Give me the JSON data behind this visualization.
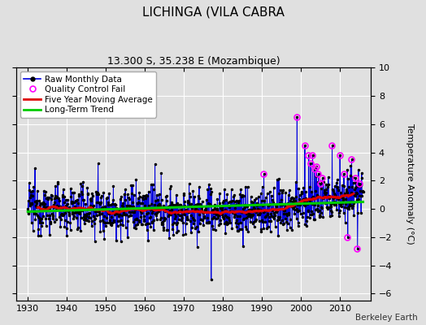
{
  "title": "LICHINGA (VILA CABRA",
  "subtitle": "13.300 S, 35.238 E (Mozambique)",
  "attribution": "Berkeley Earth",
  "ylabel": "Temperature Anomaly (°C)",
  "xlim": [
    1927,
    2018
  ],
  "ylim": [
    -6.5,
    10
  ],
  "yticks": [
    -6,
    -4,
    -2,
    0,
    2,
    4,
    6,
    8,
    10
  ],
  "xticks": [
    1930,
    1940,
    1950,
    1960,
    1970,
    1980,
    1990,
    2000,
    2010
  ],
  "start_year": 1930,
  "end_year": 2016,
  "bg_color": "#e0e0e0",
  "raw_line_color": "#0000dd",
  "raw_marker_color": "#000000",
  "qc_fail_color": "#ff00ff",
  "moving_avg_color": "#dd0000",
  "trend_color": "#00cc00",
  "trend_linewidth": 2.2,
  "moving_avg_linewidth": 2.0,
  "raw_linewidth": 0.7,
  "seed": 12345
}
